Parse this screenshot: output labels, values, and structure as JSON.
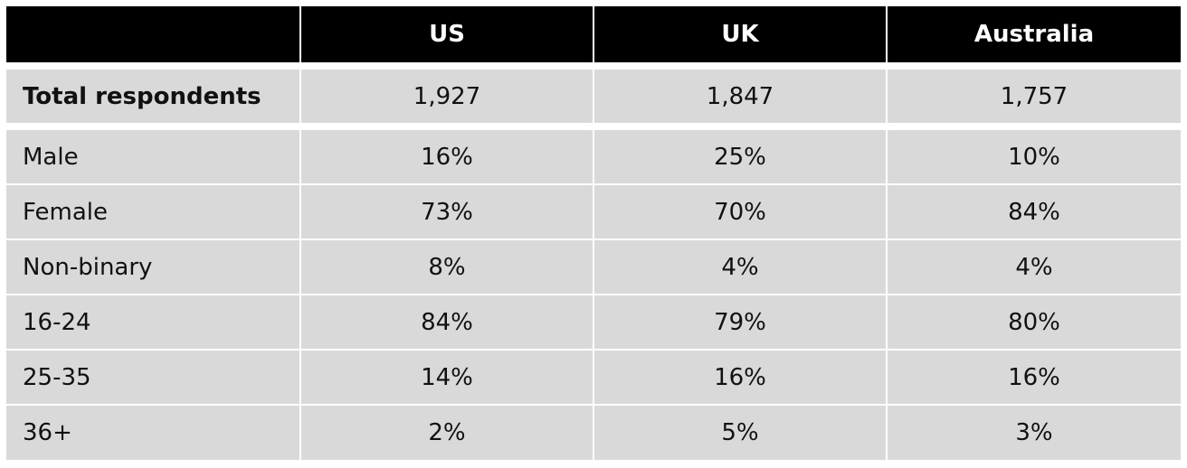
{
  "table": {
    "header": [
      "US",
      "UK",
      "Australia"
    ],
    "rows": [
      [
        "Total respondents",
        "1,927",
        "1,847",
        "1,757"
      ],
      [
        "Male",
        "16%",
        "25%",
        "10%"
      ],
      [
        "Female",
        "73%",
        "70%",
        "84%"
      ],
      [
        "Non-binary",
        "8%",
        "4%",
        "4%"
      ],
      [
        "16-24",
        "84%",
        "79%",
        "80%"
      ],
      [
        "25-35",
        "14%",
        "16%",
        "16%"
      ],
      [
        "36+",
        "2%",
        "5%",
        "3%"
      ]
    ]
  }
}
